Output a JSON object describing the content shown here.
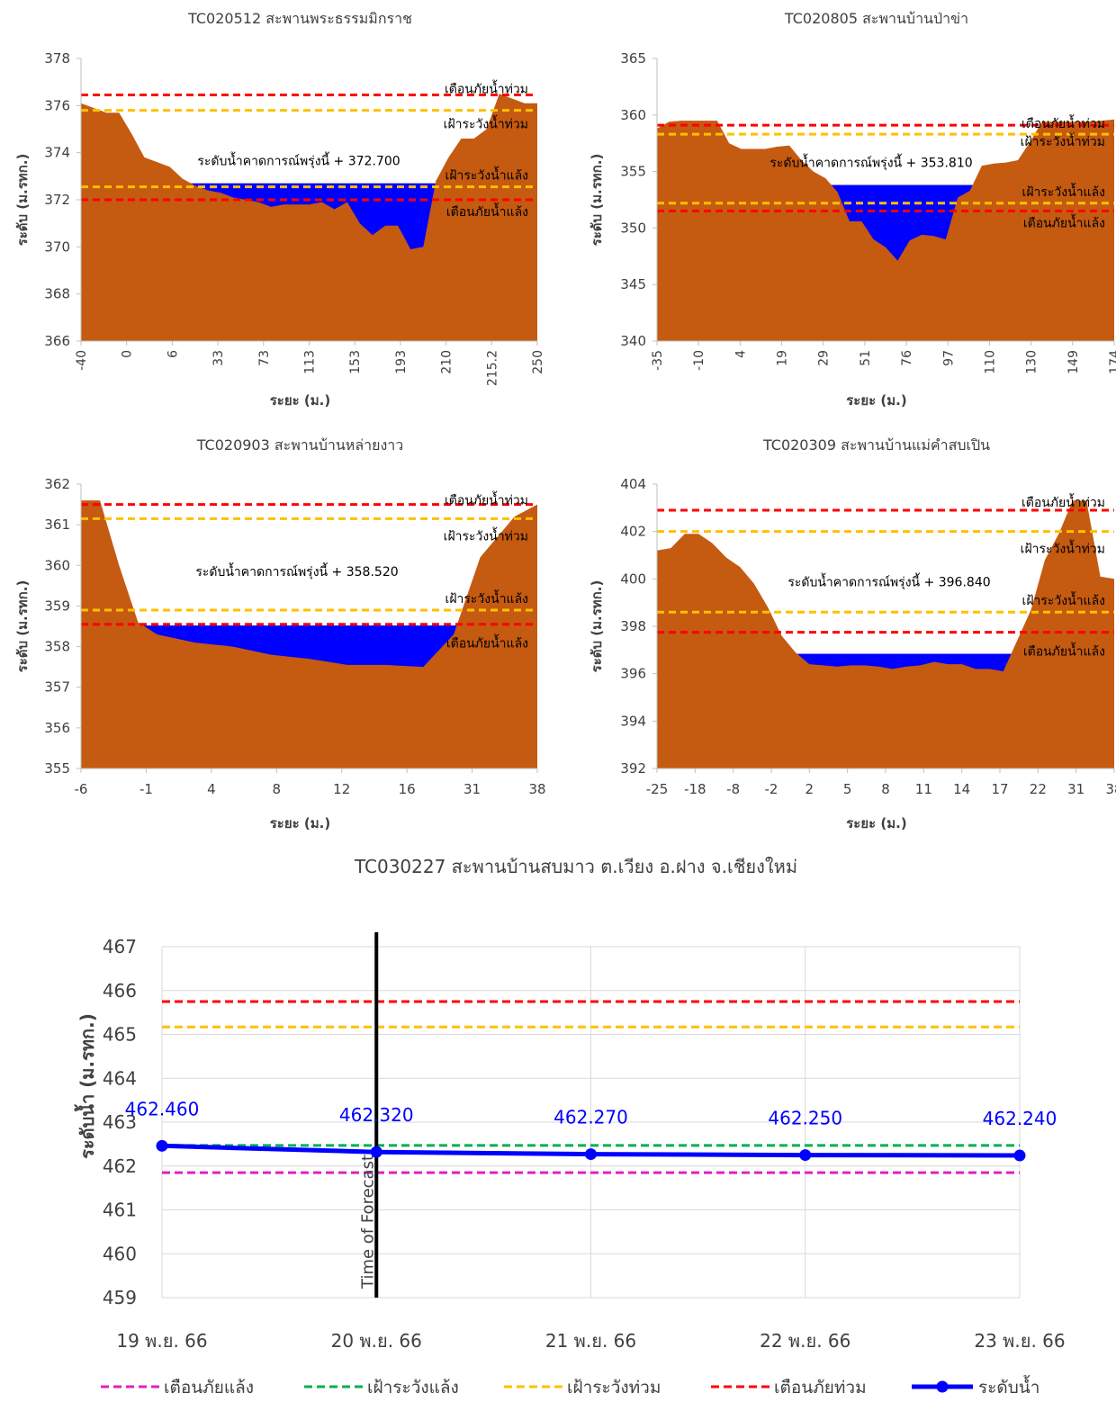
{
  "chart_data": [
    {
      "type": "area",
      "title": "TC020512 สะพานพระธรรมมิกราช",
      "xlabel": "ระยะ (ม.)",
      "ylabel": "ระดับ (ม.รทก.)",
      "ylim": [
        366,
        378
      ],
      "yticks": [
        366,
        368,
        370,
        372,
        374,
        376,
        378
      ],
      "xtick_labels": [
        "-40",
        "0",
        "6",
        "33",
        "73",
        "113",
        "153",
        "193",
        "210",
        "215.2",
        "250"
      ],
      "ground": [
        376.1,
        375.9,
        375.7,
        375.7,
        374.8,
        373.8,
        373.6,
        373.4,
        372.9,
        372.6,
        372.4,
        372.3,
        372.1,
        372.0,
        371.9,
        371.7,
        371.8,
        371.8,
        371.8,
        371.9,
        371.6,
        371.9,
        371.0,
        370.5,
        370.9,
        370.9,
        369.9,
        370.0,
        372.8,
        373.8,
        374.6,
        374.6,
        375.0,
        376.5,
        376.3,
        376.1,
        376.1
      ],
      "water_level": 372.7,
      "water_label": "ระดับน้ำคาดการณ์พรุ่งนี้ + 372.700",
      "lines": [
        {
          "name": "เตือนภัยน้ำท่วม",
          "value": 376.45,
          "color": "#ff0000"
        },
        {
          "name": "เฝ้าระวังน้ำท่วม",
          "value": 375.8,
          "color": "#ffc000"
        },
        {
          "name": "เฝ้าระวังน้ำแล้ง",
          "value": 372.55,
          "color": "#ffc000"
        },
        {
          "name": "เตือนภัยน้ำแล้ง",
          "value": 372.0,
          "color": "#ff0000"
        }
      ]
    },
    {
      "type": "area",
      "title": "TC020805 สะพานบ้านป่าข่า",
      "xlabel": "ระยะ (ม.)",
      "ylabel": "ระดับ (ม.รทก.)",
      "ylim": [
        340,
        365
      ],
      "yticks": [
        340,
        345,
        350,
        355,
        360,
        365
      ],
      "xtick_labels": [
        "-35",
        "-10",
        "4",
        "19",
        "29",
        "51",
        "76",
        "97",
        "110",
        "130",
        "149",
        "174"
      ],
      "ground": [
        358.8,
        359.4,
        359.5,
        359.5,
        359.5,
        359.5,
        357.5,
        357.0,
        357.0,
        357.0,
        357.2,
        357.3,
        356.0,
        355.0,
        354.4,
        353.2,
        350.6,
        350.6,
        349.0,
        348.3,
        347.1,
        348.9,
        349.4,
        349.3,
        349.0,
        352.7,
        353.3,
        355.5,
        355.7,
        355.8,
        356.0,
        357.6,
        359.4,
        359.4,
        359.4,
        359.4,
        359.4,
        359.5,
        359.6
      ],
      "water_level": 353.81,
      "water_label": "ระดับน้ำคาดการณ์พรุ่งนี้ + 353.810",
      "lines": [
        {
          "name": "เตือนภัยน้ำท่วม",
          "value": 359.1,
          "color": "#ff0000"
        },
        {
          "name": "เฝ้าระวังน้ำท่วม",
          "value": 358.3,
          "color": "#ffc000"
        },
        {
          "name": "เฝ้าระวังน้ำแล้ง",
          "value": 352.2,
          "color": "#ffc000"
        },
        {
          "name": "เตือนภัยน้ำแล้ง",
          "value": 351.5,
          "color": "#ff0000"
        }
      ]
    },
    {
      "type": "area",
      "title": "TC020903 สะพานบ้านหล่ายงาว",
      "xlabel": "ระยะ (ม.)",
      "ylabel": "ระดับ (ม.รทก.)",
      "ylim": [
        355,
        362
      ],
      "yticks": [
        355,
        356,
        357,
        358,
        359,
        360,
        361,
        362
      ],
      "xtick_labels": [
        "-6",
        "-1",
        "4",
        "8",
        "12",
        "16",
        "31",
        "38"
      ],
      "ground": [
        361.6,
        361.6,
        360.0,
        358.6,
        358.3,
        358.1,
        358.0,
        357.8,
        357.7,
        357.55,
        357.55,
        357.5,
        358.3,
        360.2,
        361.2,
        361.5
      ],
      "ground_x": [
        0,
        0.5,
        1,
        1.5,
        2,
        3,
        4,
        5,
        6,
        7,
        8,
        9,
        9.8,
        10.5,
        11.4,
        12
      ],
      "water_level": 358.52,
      "water_label": "ระดับน้ำคาดการณ์พรุ่งนี้ + 358.520",
      "lines": [
        {
          "name": "เตือนภัยน้ำท่วม",
          "value": 361.5,
          "color": "#ff0000"
        },
        {
          "name": "เฝ้าระวังน้ำท่วม",
          "value": 361.15,
          "color": "#ffc000"
        },
        {
          "name": "เฝ้าระวังน้ำแล้ง",
          "value": 358.9,
          "color": "#ffc000"
        },
        {
          "name": "เตือนภัยน้ำแล้ง",
          "value": 358.55,
          "color": "#ff0000"
        }
      ]
    },
    {
      "type": "area",
      "title": "TC020309 สะพานบ้านแม่คำสบเปิน",
      "xlabel": "ระยะ (ม.)",
      "ylabel": "ระดับ (ม.รทก.)",
      "ylim": [
        392,
        404
      ],
      "yticks": [
        392,
        394,
        396,
        398,
        400,
        402,
        404
      ],
      "xtick_labels": [
        "-25",
        "-18",
        "-8",
        "-2",
        "2",
        "5",
        "8",
        "11",
        "14",
        "17",
        "22",
        "31",
        "38"
      ],
      "ground": [
        401.2,
        401.3,
        401.9,
        401.9,
        401.5,
        400.9,
        400.5,
        399.8,
        398.8,
        397.6,
        396.9,
        396.4,
        396.35,
        396.3,
        396.35,
        396.35,
        396.3,
        396.2,
        396.3,
        396.35,
        396.5,
        396.4,
        396.4,
        396.2,
        396.2,
        396.1,
        397.4,
        398.7,
        400.8,
        401.9,
        403.3,
        403.3,
        400.1,
        400.0
      ],
      "water_level": 396.84,
      "water_label": "ระดับน้ำคาดการณ์พรุ่งนี้ + 396.840",
      "lines": [
        {
          "name": "เตือนภัยน้ำท่วม",
          "value": 402.9,
          "color": "#ff0000"
        },
        {
          "name": "เฝ้าระวังน้ำท่วม",
          "value": 402.0,
          "color": "#ffc000"
        },
        {
          "name": "เฝ้าระวังน้ำแล้ง",
          "value": 398.6,
          "color": "#ffc000"
        },
        {
          "name": "เตือนภัยน้ำแล้ง",
          "value": 397.75,
          "color": "#ff0000"
        }
      ]
    },
    {
      "type": "line",
      "title": "TC030227 สะพานบ้านสบมาว ต.เวียง อ.ฝาง จ.เชียงใหม่",
      "ylabel": "ระดับน้ำ (ม.รทก.)",
      "ylim": [
        459,
        467
      ],
      "yticks": [
        459,
        460,
        461,
        462,
        463,
        464,
        465,
        466,
        467
      ],
      "categories": [
        "19 พ.ย. 66",
        "20 พ.ย. 66",
        "21 พ.ย. 66",
        "22 พ.ย. 66",
        "23 พ.ย. 66"
      ],
      "series": [
        {
          "name": "ระดับน้ำ",
          "values": [
            462.46,
            462.32,
            462.27,
            462.25,
            462.24
          ],
          "color": "#0000ff"
        }
      ],
      "point_labels": [
        "462.460",
        "462.320",
        "462.270",
        "462.250",
        "462.240"
      ],
      "lines": [
        {
          "name": "เตือนภัยแล้ง",
          "value": 461.85,
          "color": "#e020c0"
        },
        {
          "name": "เฝ้าระวังแล้ง",
          "value": 462.47,
          "color": "#00b050"
        },
        {
          "name": "เฝ้าระวังท่วม",
          "value": 465.17,
          "color": "#ffc000"
        },
        {
          "name": "เตือนภัยท่วม",
          "value": 465.75,
          "color": "#ff0000"
        }
      ],
      "forecast_label": "Time of Forecast",
      "forecast_index": 1,
      "legend": [
        {
          "name": "เตือนภัยแล้ง",
          "color": "#e020c0"
        },
        {
          "name": "เฝ้าระวังแล้ง",
          "color": "#00b050"
        },
        {
          "name": "เฝ้าระวังท่วม",
          "color": "#ffc000"
        },
        {
          "name": "เตือนภัยท่วม",
          "color": "#ff0000"
        },
        {
          "name": "ระดับน้ำ",
          "color": "#0000ff"
        }
      ],
      "legend_position": "bottom"
    }
  ]
}
